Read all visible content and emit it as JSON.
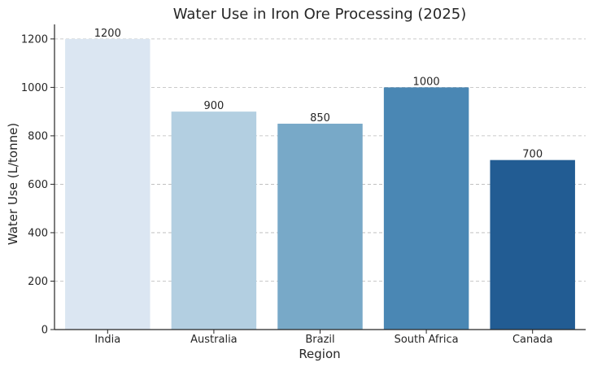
{
  "chart_data": {
    "type": "bar",
    "title": "Water Use in Iron Ore Processing (2025)",
    "xlabel": "Region",
    "ylabel": "Water Use (L/tonne)",
    "categories": [
      "India",
      "Australia",
      "Brazil",
      "South Africa",
      "Canada"
    ],
    "values": [
      1200,
      900,
      850,
      1000,
      700
    ],
    "data_labels": [
      "1200",
      "900",
      "850",
      "1000",
      "700"
    ],
    "colors": [
      "#dbe6f2",
      "#b3cfe1",
      "#78a9c8",
      "#4a87b4",
      "#225c93"
    ],
    "ylim": [
      0,
      1260
    ],
    "yticks": [
      0,
      200,
      400,
      600,
      800,
      1000,
      1200
    ],
    "grid": true,
    "legend": "none"
  }
}
